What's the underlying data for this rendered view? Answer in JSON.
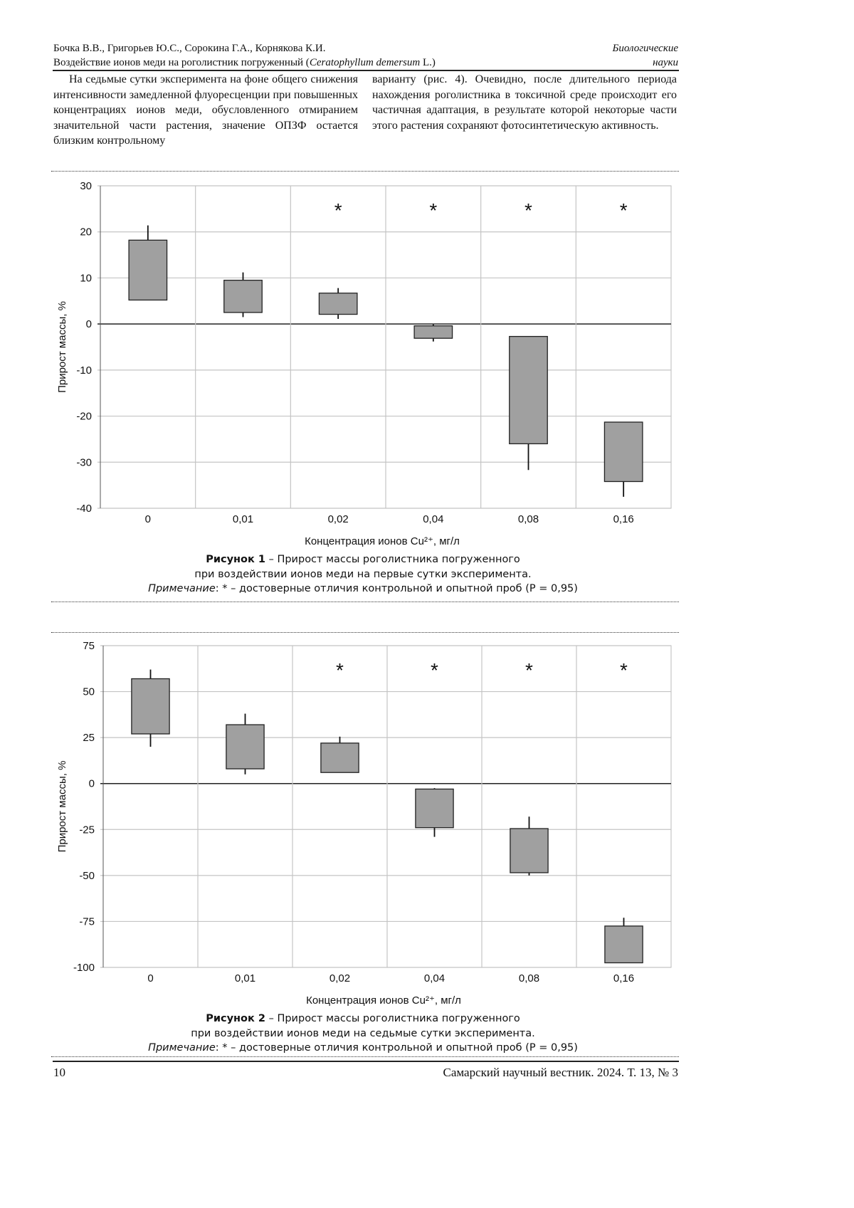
{
  "header": {
    "authors": "Бочка В.В., Григорьев Ю.С., Сорокина Г.А., Корнякова К.И.",
    "title_prefix": "Воздействие ионов меди на роголистник погруженный (",
    "title_species": "Ceratophyllum demersum",
    "title_suffix": " L.)",
    "section_line1": "Биологические",
    "section_line2": "науки"
  },
  "body": {
    "left_column": "На седьмые сутки эксперимента на фоне общего снижения интенсивности замедленной флуоресценции при повышенных концентрациях ионов меди, обусловленного отмиранием значительной части растения, значение ОПЗФ остается близким контрольному",
    "right_column": "варианту (рис. 4). Очевидно, после длительного периода нахождения роголистника в токсичной среде происходит его частичная адаптация, в результате которой некоторые части этого растения сохраняют фотосинтетическую активность."
  },
  "figures": [
    {
      "caption_label": "Рисунок 1",
      "caption_line1": " – Прирост массы роголистника погруженного",
      "caption_line2": "при воздействии ионов меди на первые сутки эксперимента.",
      "note_label": "Примечание",
      "note_text": ": * – достоверные отличия контрольной и опытной проб (P = 0,95)"
    },
    {
      "caption_label": "Рисунок 2",
      "caption_line1": " – Прирост массы роголистника погруженного",
      "caption_line2": "при воздействии ионов меди на седьмые сутки эксперимента.",
      "note_label": "Примечание",
      "note_text": ": * – достоверные отличия контрольной и опытной проб (P = 0,95)"
    }
  ],
  "chart_data": [
    {
      "type": "box",
      "xlabel": "Концентрация ионов Cu²⁺, мг/л",
      "ylabel": "Прирост массы, %",
      "categories": [
        "0",
        "0,01",
        "0,02",
        "0,04",
        "0,08",
        "0,16"
      ],
      "ylim": [
        -40,
        30
      ],
      "yticks": [
        30,
        20,
        10,
        0,
        -10,
        -20,
        -30,
        -40
      ],
      "grid": true,
      "boxes": [
        {
          "q1": 5.2,
          "q3": 18.2,
          "min": 5.2,
          "max": 21.4
        },
        {
          "q1": 2.5,
          "q3": 9.5,
          "min": 1.5,
          "max": 11.2
        },
        {
          "q1": 2.1,
          "q3": 6.7,
          "min": 1.1,
          "max": 7.8
        },
        {
          "q1": -3.1,
          "q3": -0.4,
          "min": -3.8,
          "max": -0.1
        },
        {
          "q1": -26.0,
          "q3": -2.7,
          "min": -31.7,
          "max": -2.7
        },
        {
          "q1": -34.2,
          "q3": -21.3,
          "min": -37.5,
          "max": -21.3
        }
      ],
      "significance": [
        "",
        "",
        "*",
        "*",
        "*",
        "*"
      ],
      "box_color": "#a0a0a0"
    },
    {
      "type": "box",
      "xlabel": "Концентрация ионов Cu²⁺, мг/л",
      "ylabel": "Прирост массы, %",
      "categories": [
        "0",
        "0,01",
        "0,02",
        "0,04",
        "0,08",
        "0,16"
      ],
      "ylim": [
        -100,
        75
      ],
      "yticks": [
        75,
        50,
        25,
        0,
        -25,
        -50,
        -75,
        -100
      ],
      "grid": true,
      "boxes": [
        {
          "q1": 27,
          "q3": 57,
          "min": 20,
          "max": 62
        },
        {
          "q1": 8,
          "q3": 32,
          "min": 5,
          "max": 38
        },
        {
          "q1": 6,
          "q3": 22,
          "min": 6,
          "max": 25.5
        },
        {
          "q1": -24,
          "q3": -3,
          "min": -29,
          "max": -2.5
        },
        {
          "q1": -48.5,
          "q3": -24.5,
          "min": -50,
          "max": -18
        },
        {
          "q1": -97.5,
          "q3": -77.5,
          "min": -97.5,
          "max": -73
        }
      ],
      "significance": [
        "",
        "",
        "*",
        "*",
        "*",
        "*"
      ],
      "box_color": "#a0a0a0"
    }
  ],
  "footer": {
    "page_number": "10",
    "journal": "Самарский научный вестник. 2024. Т. 13, № 3"
  }
}
